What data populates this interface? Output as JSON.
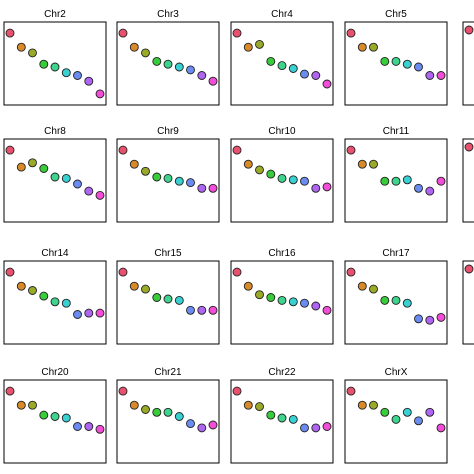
{
  "chart_data": [
    {
      "type": "scatter",
      "title": "Chr2",
      "series": [
        {
          "y": [
            9.0,
            8.0,
            7.6,
            6.8,
            6.6,
            6.2,
            6.0,
            5.6,
            4.7
          ]
        }
      ]
    },
    {
      "type": "scatter",
      "title": "Chr3",
      "series": [
        {
          "y": [
            9.0,
            8.0,
            7.6,
            7.0,
            6.8,
            6.6,
            6.4,
            6.0,
            5.6
          ]
        }
      ]
    },
    {
      "type": "scatter",
      "title": "Chr4",
      "series": [
        {
          "y": [
            9.0,
            8.0,
            8.2,
            7.0,
            6.7,
            6.5,
            6.1,
            6.0,
            5.4
          ]
        }
      ]
    },
    {
      "type": "scatter",
      "title": "Chr5",
      "series": [
        {
          "y": [
            9.0,
            8.0,
            8.0,
            7.0,
            7.0,
            6.8,
            6.6,
            6.0,
            6.0
          ]
        }
      ]
    },
    {
      "type": "scatter",
      "title": "Chr8",
      "series": [
        {
          "y": [
            9.0,
            7.8,
            8.1,
            7.7,
            7.1,
            7.0,
            6.6,
            6.1,
            5.8
          ]
        }
      ]
    },
    {
      "type": "scatter",
      "title": "Chr9",
      "series": [
        {
          "y": [
            9.0,
            8.0,
            7.5,
            7.1,
            7.0,
            6.8,
            6.7,
            6.3,
            6.3
          ]
        }
      ]
    },
    {
      "type": "scatter",
      "title": "Chr10",
      "series": [
        {
          "y": [
            9.0,
            8.0,
            7.6,
            7.3,
            7.0,
            6.9,
            6.8,
            6.3,
            6.4
          ]
        }
      ]
    },
    {
      "type": "scatter",
      "title": "Chr11",
      "series": [
        {
          "y": [
            9.0,
            8.0,
            8.0,
            6.8,
            6.8,
            6.9,
            6.3,
            6.1,
            6.8
          ]
        }
      ]
    },
    {
      "type": "scatter",
      "title": "Chr14",
      "series": [
        {
          "y": [
            9.0,
            8.0,
            7.7,
            7.3,
            6.9,
            6.8,
            6.0,
            6.1,
            6.1
          ]
        }
      ]
    },
    {
      "type": "scatter",
      "title": "Chr15",
      "series": [
        {
          "y": [
            9.0,
            8.0,
            7.8,
            7.2,
            7.1,
            7.0,
            6.3,
            6.3,
            6.3
          ]
        }
      ]
    },
    {
      "type": "scatter",
      "title": "Chr16",
      "series": [
        {
          "y": [
            9.0,
            8.0,
            7.4,
            7.2,
            7.0,
            6.9,
            6.8,
            6.6,
            6.3
          ]
        }
      ]
    },
    {
      "type": "scatter",
      "title": "Chr17",
      "series": [
        {
          "y": [
            9.0,
            8.0,
            7.8,
            7.0,
            7.0,
            6.8,
            5.7,
            5.6,
            5.8
          ]
        }
      ]
    },
    {
      "type": "scatter",
      "title": "Chr20",
      "series": [
        {
          "y": [
            9.0,
            8.0,
            8.0,
            7.3,
            7.2,
            7.1,
            6.5,
            6.5,
            6.3
          ]
        }
      ]
    },
    {
      "type": "scatter",
      "title": "Chr21",
      "series": [
        {
          "y": [
            9.0,
            8.0,
            7.7,
            7.5,
            7.5,
            7.2,
            6.7,
            6.4,
            6.6
          ]
        }
      ]
    },
    {
      "type": "scatter",
      "title": "Chr22",
      "series": [
        {
          "y": [
            9.0,
            8.0,
            7.9,
            7.3,
            7.1,
            7.0,
            6.4,
            6.4,
            6.5
          ]
        }
      ]
    },
    {
      "type": "scatter",
      "title": "ChrX",
      "series": [
        {
          "y": [
            9.0,
            8.0,
            8.0,
            7.5,
            7.0,
            7.5,
            6.9,
            7.5,
            6.4
          ]
        }
      ]
    }
  ],
  "colors": [
    "#e8516e",
    "#d98a28",
    "#9aaa28",
    "#38cc3a",
    "#3ed48e",
    "#38d0d0",
    "#6a8cf2",
    "#b064f2",
    "#f24cd8"
  ]
}
